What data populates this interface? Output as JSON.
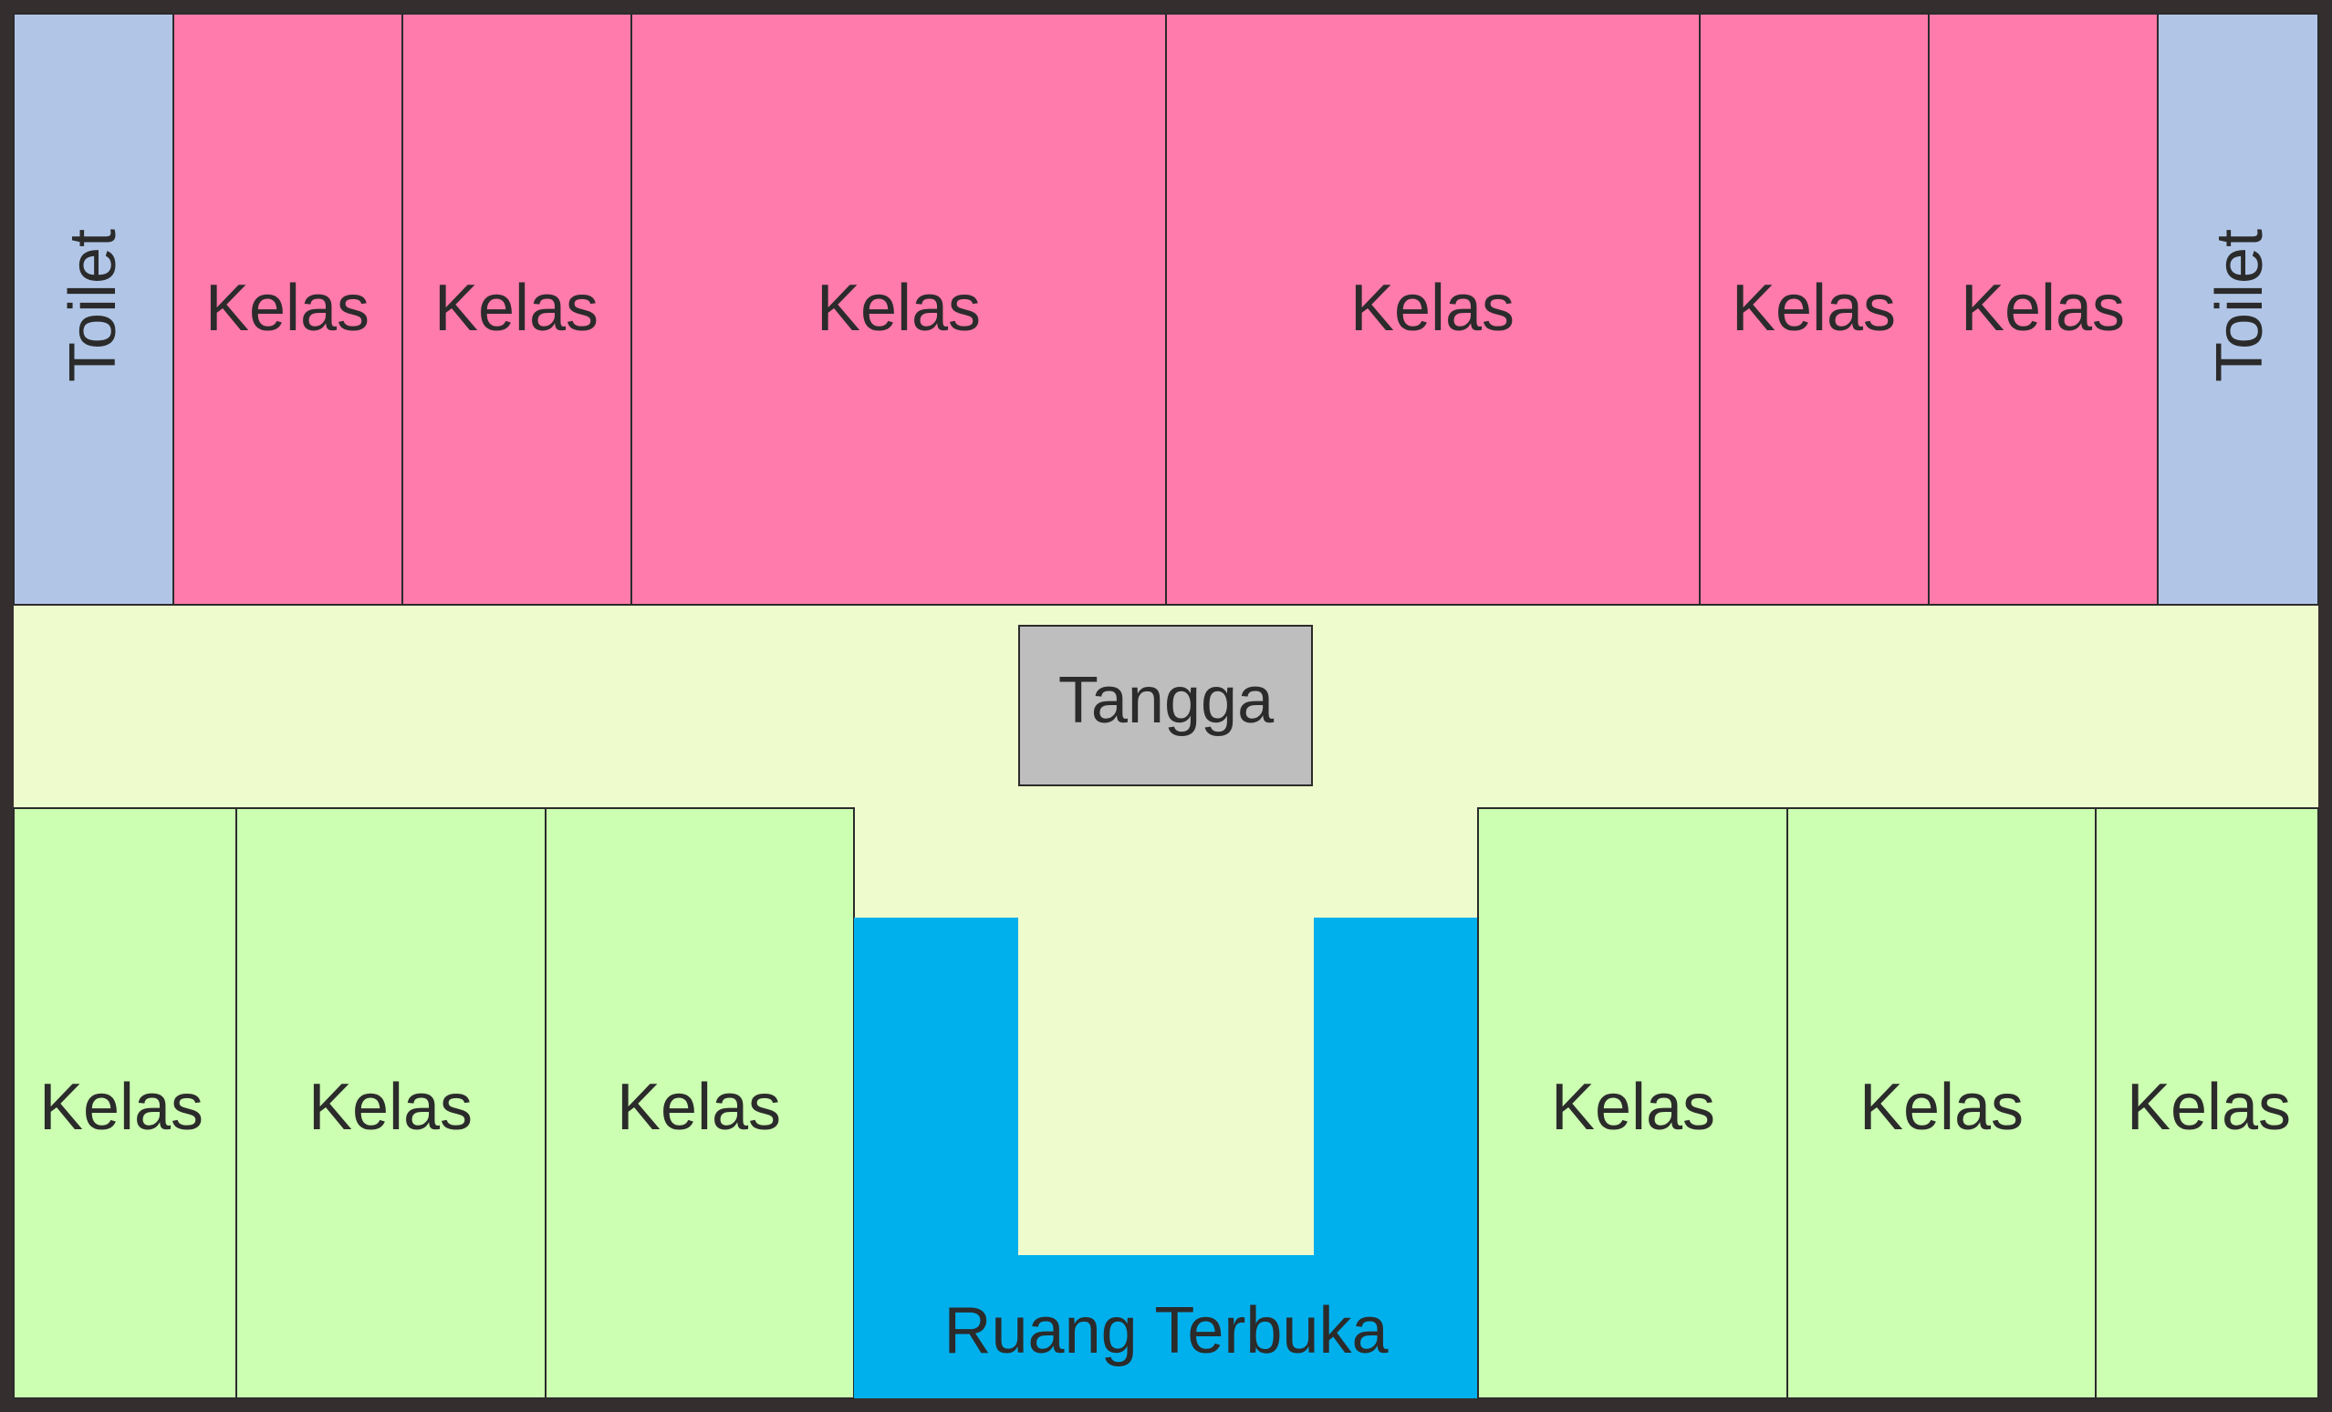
{
  "floor_plan": {
    "colors": {
      "frame": "#342f2e",
      "toilet": "#b1c6e7",
      "top_classroom": "#ff7bab",
      "corridor": "#eefbcd",
      "stair": "#bebebe",
      "bottom_classroom": "#ccffb2",
      "open_space": "#00b0ed",
      "line": "#2b2b2b"
    },
    "top_row": {
      "toilet_left": "Toilet",
      "classrooms": [
        "Kelas",
        "Kelas",
        "Kelas",
        "Kelas",
        "Kelas",
        "Kelas"
      ],
      "toilet_right": "Toilet"
    },
    "stair": "Tangga",
    "bottom_row": {
      "classrooms_left": [
        "Kelas",
        "Kelas",
        "Kelas"
      ],
      "open_space": "Ruang Terbuka",
      "classrooms_right": [
        "Kelas",
        "Kelas",
        "Kelas"
      ]
    }
  }
}
